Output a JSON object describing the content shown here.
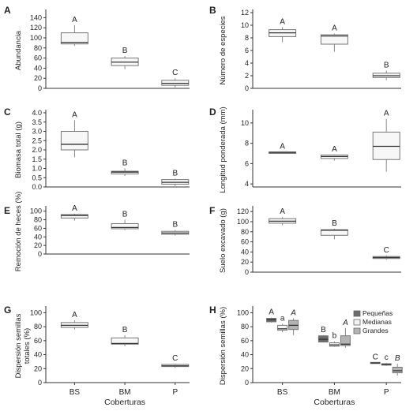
{
  "figure": {
    "categories": [
      "BS",
      "BM",
      "P"
    ],
    "xlabel": "Coberturas"
  },
  "chart_data": [
    {
      "id": "A",
      "type": "box",
      "ylabel": "Abundancia",
      "ylim": [
        0,
        150
      ],
      "yticks": [
        0,
        20,
        40,
        60,
        80,
        100,
        120,
        140
      ],
      "series": [
        {
          "boxes": [
            {
              "cat": "BS",
              "min": 84,
              "q1": 88,
              "median": 91,
              "q3": 110,
              "max": 125,
              "letter": "A"
            },
            {
              "cat": "BM",
              "min": 38,
              "q1": 45,
              "median": 52,
              "q3": 60,
              "max": 64,
              "letter": "B"
            },
            {
              "cat": "P",
              "min": 2,
              "q1": 6,
              "median": 10,
              "q3": 16,
              "max": 20,
              "letter": "C"
            }
          ]
        }
      ]
    },
    {
      "id": "B",
      "type": "box",
      "ylabel": "Número de especies",
      "ylim": [
        0,
        12
      ],
      "yticks": [
        0,
        2,
        4,
        6,
        8,
        10,
        12
      ],
      "series": [
        {
          "boxes": [
            {
              "cat": "BS",
              "min": 7.3,
              "q1": 8.2,
              "median": 8.8,
              "q3": 9.3,
              "max": 9.7,
              "letter": "A"
            },
            {
              "cat": "BM",
              "min": 5.8,
              "q1": 7.0,
              "median": 8.3,
              "q3": 8.5,
              "max": 8.7,
              "letter": "A"
            },
            {
              "cat": "P",
              "min": 1.3,
              "q1": 1.7,
              "median": 2.0,
              "q3": 2.4,
              "max": 2.8,
              "letter": "B"
            }
          ]
        }
      ]
    },
    {
      "id": "C",
      "type": "box",
      "ylabel": "Biomasa total (g)",
      "ylim": [
        0,
        4
      ],
      "yticks": [
        0,
        0.5,
        1.0,
        1.5,
        2.0,
        2.5,
        3.0,
        3.5,
        4.0
      ],
      "tick_format": 1,
      "series": [
        {
          "boxes": [
            {
              "cat": "BS",
              "min": 1.6,
              "q1": 2.0,
              "median": 2.3,
              "q3": 3.0,
              "max": 3.6,
              "letter": "A"
            },
            {
              "cat": "BM",
              "min": 0.6,
              "q1": 0.7,
              "median": 0.8,
              "q3": 0.85,
              "max": 1.0,
              "letter": "B"
            },
            {
              "cat": "P",
              "min": 0.05,
              "q1": 0.15,
              "median": 0.25,
              "q3": 0.4,
              "max": 0.45,
              "letter": "B"
            }
          ]
        }
      ]
    },
    {
      "id": "D",
      "type": "box",
      "ylabel": "Longitud ponderada (mm)",
      "ylim": [
        3.7,
        11
      ],
      "yticks": [
        4,
        6,
        8,
        10
      ],
      "series": [
        {
          "boxes": [
            {
              "cat": "BS",
              "min": 7.0,
              "q1": 7.0,
              "median": 7.1,
              "q3": 7.15,
              "max": 7.15,
              "letter": "A"
            },
            {
              "cat": "BM",
              "min": 6.3,
              "q1": 6.5,
              "median": 6.7,
              "q3": 6.85,
              "max": 6.9,
              "letter": "A"
            },
            {
              "cat": "P",
              "min": 5.2,
              "q1": 6.4,
              "median": 7.7,
              "q3": 9.1,
              "max": 10.4,
              "letter": "A"
            }
          ]
        }
      ]
    },
    {
      "id": "E",
      "type": "box",
      "ylabel": "Remoción de heces (%)",
      "ylim": [
        0,
        105
      ],
      "yticks": [
        0,
        20,
        40,
        60,
        80,
        100
      ],
      "series": [
        {
          "boxes": [
            {
              "cat": "BS",
              "min": 78,
              "q1": 84,
              "median": 90,
              "q3": 92,
              "max": 94,
              "letter": "A"
            },
            {
              "cat": "BM",
              "min": 56,
              "q1": 59,
              "median": 62,
              "q3": 71,
              "max": 80,
              "letter": "B"
            },
            {
              "cat": "P",
              "min": 43,
              "q1": 46,
              "median": 49,
              "q3": 53,
              "max": 56,
              "letter": "B"
            }
          ]
        }
      ]
    },
    {
      "id": "F",
      "type": "box",
      "ylabel": "Suelo excavado (g)",
      "ylim": [
        0,
        125
      ],
      "yticks": [
        0,
        20,
        40,
        60,
        80,
        100,
        120
      ],
      "series": [
        {
          "boxes": [
            {
              "cat": "BS",
              "min": 93,
              "q1": 97,
              "median": 101,
              "q3": 106,
              "max": 109,
              "letter": "A"
            },
            {
              "cat": "BM",
              "min": 65,
              "q1": 73,
              "median": 83,
              "q3": 84,
              "max": 86,
              "letter": "B"
            },
            {
              "cat": "P",
              "min": 25,
              "q1": 27,
              "median": 29,
              "q3": 31,
              "max": 33,
              "letter": "C"
            }
          ]
        }
      ]
    },
    {
      "id": "G",
      "type": "box",
      "ylabel": "Dispersión semillas totales (%)",
      "ylim": [
        0,
        105
      ],
      "yticks": [
        0,
        20,
        40,
        60,
        80,
        100
      ],
      "series": [
        {
          "boxes": [
            {
              "cat": "BS",
              "min": 76,
              "q1": 79,
              "median": 82,
              "q3": 86,
              "max": 89,
              "letter": "A"
            },
            {
              "cat": "BM",
              "min": 52,
              "q1": 55,
              "median": 56,
              "q3": 64,
              "max": 68,
              "letter": "B"
            },
            {
              "cat": "P",
              "min": 21,
              "q1": 23,
              "median": 24,
              "q3": 26,
              "max": 27,
              "letter": "C"
            }
          ]
        }
      ]
    },
    {
      "id": "H",
      "type": "box",
      "ylabel": "Dispersión semillas (%)",
      "ylim": [
        0,
        105
      ],
      "yticks": [
        0,
        20,
        40,
        60,
        80,
        100
      ],
      "legend": {
        "placement": "top-right"
      },
      "series": [
        {
          "name": "Pequeñas",
          "color": "#6b6b6b",
          "letter_style": "normal",
          "boxes": [
            {
              "cat": "BS",
              "min": 86,
              "q1": 87,
              "median": 90,
              "q3": 92,
              "max": 93,
              "letter": "A"
            },
            {
              "cat": "BM",
              "min": 58,
              "q1": 58,
              "median": 62,
              "q3": 67,
              "max": 68,
              "letter": "B"
            },
            {
              "cat": "P",
              "min": 28,
              "q1": 28,
              "median": 28,
              "q3": 29,
              "max": 29,
              "letter": "C"
            }
          ]
        },
        {
          "name": "Medianas",
          "color": "#f4f4f4",
          "letter_style": "normal",
          "boxes": [
            {
              "cat": "BS",
              "min": 72,
              "q1": 75,
              "median": 77,
              "q3": 82,
              "max": 84,
              "letter": "a"
            },
            {
              "cat": "BM",
              "min": 51,
              "q1": 52,
              "median": 54,
              "q3": 57,
              "max": 59,
              "letter": "b"
            },
            {
              "cat": "P",
              "min": 24,
              "q1": 25,
              "median": 26,
              "q3": 27,
              "max": 28,
              "letter": "c"
            }
          ]
        },
        {
          "name": "Grandes",
          "color": "#b3b3b3",
          "letter_style": "italic",
          "boxes": [
            {
              "cat": "BS",
              "min": 68,
              "q1": 76,
              "median": 82,
              "q3": 89,
              "max": 92,
              "letter": "A"
            },
            {
              "cat": "BM",
              "min": 50,
              "q1": 53,
              "median": 55,
              "q3": 67,
              "max": 78,
              "letter": "A"
            },
            {
              "cat": "P",
              "min": 10,
              "q1": 14,
              "median": 17,
              "q3": 22,
              "max": 27,
              "letter": "B"
            }
          ]
        }
      ]
    }
  ]
}
